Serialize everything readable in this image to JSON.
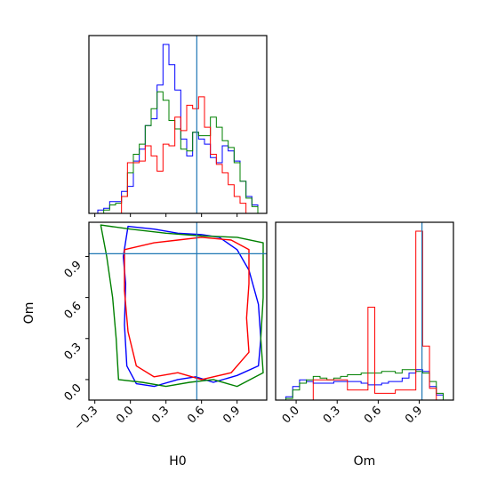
{
  "chart_data": [
    {
      "panel": "H0-marginal",
      "type": "histogram",
      "xlim": [
        -0.35,
        1.15
      ],
      "truth": 0.56,
      "series": [
        {
          "color": "#0000ff",
          "x": [
            -0.3,
            -0.25,
            -0.2,
            -0.15,
            -0.1,
            -0.05,
            0.0,
            0.05,
            0.1,
            0.15,
            0.2,
            0.25,
            0.3,
            0.35,
            0.4,
            0.45,
            0.5,
            0.55,
            0.6,
            0.65,
            0.7,
            0.75,
            0.8,
            0.85,
            0.9,
            0.95,
            1.0,
            1.05,
            1.1
          ],
          "values": [
            0.0,
            0.02,
            0.03,
            0.07,
            0.07,
            0.13,
            0.16,
            0.31,
            0.38,
            0.52,
            0.56,
            0.76,
            1.0,
            0.88,
            0.73,
            0.44,
            0.34,
            0.48,
            0.44,
            0.41,
            0.33,
            0.3,
            0.4,
            0.37,
            0.31,
            0.19,
            0.1,
            0.05,
            0.0
          ]
        },
        {
          "color": "#008000",
          "x": [
            -0.3,
            -0.25,
            -0.2,
            -0.15,
            -0.1,
            -0.05,
            0.0,
            0.05,
            0.1,
            0.15,
            0.2,
            0.25,
            0.3,
            0.35,
            0.4,
            0.45,
            0.5,
            0.55,
            0.6,
            0.65,
            0.7,
            0.75,
            0.8,
            0.85,
            0.9,
            0.95,
            1.0,
            1.05,
            1.1
          ],
          "values": [
            0.0,
            0.0,
            0.02,
            0.05,
            0.06,
            0.1,
            0.24,
            0.35,
            0.41,
            0.52,
            0.62,
            0.72,
            0.67,
            0.55,
            0.5,
            0.38,
            0.37,
            0.48,
            0.46,
            0.46,
            0.57,
            0.51,
            0.43,
            0.39,
            0.3,
            0.19,
            0.09,
            0.04,
            0.0
          ]
        },
        {
          "color": "#ff0000",
          "x": [
            -0.3,
            -0.25,
            -0.2,
            -0.15,
            -0.1,
            -0.05,
            0.0,
            0.05,
            0.1,
            0.15,
            0.2,
            0.25,
            0.3,
            0.35,
            0.4,
            0.45,
            0.5,
            0.55,
            0.6,
            0.65,
            0.7,
            0.75,
            0.8,
            0.85,
            0.9,
            0.95,
            1.0,
            1.05,
            1.1
          ],
          "values": [
            0.0,
            0.0,
            0.0,
            0.0,
            0.0,
            0.1,
            0.3,
            0.3,
            0.31,
            0.4,
            0.34,
            0.25,
            0.41,
            0.4,
            0.57,
            0.49,
            0.64,
            0.62,
            0.69,
            0.51,
            0.35,
            0.29,
            0.24,
            0.17,
            0.1,
            0.06,
            0.0,
            0.0,
            0.0
          ]
        }
      ]
    },
    {
      "panel": "H0-Om-joint",
      "type": "contour",
      "xlim": [
        -0.35,
        1.15
      ],
      "ylim": [
        -0.15,
        1.15
      ],
      "truth": {
        "x": 0.56,
        "y": 0.92
      },
      "series": [
        {
          "color": "#0000ff",
          "points": [
            [
              -0.02,
              1.12
            ],
            [
              0.2,
              1.1
            ],
            [
              0.4,
              1.07
            ],
            [
              0.6,
              1.06
            ],
            [
              0.75,
              1.04
            ],
            [
              0.9,
              0.95
            ],
            [
              1.0,
              0.8
            ],
            [
              1.08,
              0.55
            ],
            [
              1.1,
              0.3
            ],
            [
              1.08,
              0.1
            ],
            [
              0.9,
              0.03
            ],
            [
              0.7,
              -0.02
            ],
            [
              0.55,
              0.02
            ],
            [
              0.4,
              0.0
            ],
            [
              0.2,
              -0.05
            ],
            [
              0.05,
              -0.03
            ],
            [
              -0.03,
              0.1
            ],
            [
              -0.05,
              0.4
            ],
            [
              -0.04,
              0.7
            ],
            [
              -0.06,
              0.9
            ],
            [
              -0.02,
              1.12
            ]
          ]
        },
        {
          "color": "#008000",
          "points": [
            [
              -0.25,
              1.13
            ],
            [
              0.0,
              1.1
            ],
            [
              0.3,
              1.07
            ],
            [
              0.6,
              1.05
            ],
            [
              0.9,
              1.04
            ],
            [
              1.12,
              1.0
            ],
            [
              1.12,
              0.6
            ],
            [
              1.1,
              0.3
            ],
            [
              1.12,
              0.05
            ],
            [
              0.9,
              -0.05
            ],
            [
              0.7,
              0.0
            ],
            [
              0.5,
              -0.02
            ],
            [
              0.3,
              -0.05
            ],
            [
              0.1,
              -0.02
            ],
            [
              -0.1,
              0.0
            ],
            [
              -0.12,
              0.3
            ],
            [
              -0.15,
              0.6
            ],
            [
              -0.2,
              0.9
            ],
            [
              -0.25,
              1.13
            ]
          ]
        },
        {
          "color": "#ff0000",
          "points": [
            [
              -0.05,
              0.95
            ],
            [
              0.2,
              1.0
            ],
            [
              0.4,
              1.02
            ],
            [
              0.6,
              1.04
            ],
            [
              0.85,
              1.02
            ],
            [
              1.0,
              0.95
            ],
            [
              1.0,
              0.7
            ],
            [
              0.98,
              0.45
            ],
            [
              1.0,
              0.2
            ],
            [
              0.85,
              0.05
            ],
            [
              0.6,
              0.0
            ],
            [
              0.4,
              0.05
            ],
            [
              0.2,
              0.02
            ],
            [
              0.05,
              0.1
            ],
            [
              -0.02,
              0.35
            ],
            [
              -0.05,
              0.65
            ],
            [
              -0.05,
              0.95
            ]
          ]
        }
      ]
    },
    {
      "panel": "Om-marginal",
      "type": "histogram",
      "xlim": [
        -0.15,
        1.15
      ],
      "truth": 0.92,
      "series": [
        {
          "color": "#0000ff",
          "x": [
            -0.1,
            -0.05,
            0.0,
            0.05,
            0.1,
            0.15,
            0.2,
            0.25,
            0.3,
            0.35,
            0.4,
            0.45,
            0.5,
            0.55,
            0.6,
            0.65,
            0.7,
            0.75,
            0.8,
            0.85,
            0.9,
            0.95,
            1.0,
            1.05,
            1.1
          ],
          "values": [
            0.0,
            0.02,
            0.08,
            0.12,
            0.11,
            0.1,
            0.1,
            0.1,
            0.11,
            0.11,
            0.11,
            0.11,
            0.1,
            0.09,
            0.09,
            0.1,
            0.11,
            0.11,
            0.13,
            0.16,
            0.18,
            0.17,
            0.08,
            0.03,
            0.0
          ]
        },
        {
          "color": "#008000",
          "x": [
            -0.1,
            -0.05,
            0.0,
            0.05,
            0.1,
            0.15,
            0.2,
            0.25,
            0.3,
            0.35,
            0.4,
            0.45,
            0.5,
            0.55,
            0.6,
            0.65,
            0.7,
            0.75,
            0.8,
            0.85,
            0.9,
            0.95,
            1.0,
            1.05,
            1.1
          ],
          "values": [
            0.0,
            0.01,
            0.06,
            0.1,
            0.12,
            0.14,
            0.13,
            0.12,
            0.13,
            0.14,
            0.15,
            0.15,
            0.16,
            0.16,
            0.16,
            0.17,
            0.17,
            0.16,
            0.18,
            0.18,
            0.17,
            0.16,
            0.11,
            0.04,
            0.0
          ]
        },
        {
          "color": "#ff0000",
          "x": [
            -0.1,
            -0.05,
            0.0,
            0.05,
            0.1,
            0.15,
            0.2,
            0.25,
            0.3,
            0.35,
            0.4,
            0.45,
            0.5,
            0.55,
            0.6,
            0.65,
            0.7,
            0.75,
            0.8,
            0.85,
            0.9,
            0.95,
            1.0,
            1.05,
            1.1
          ],
          "values": [
            0.0,
            0.0,
            0.0,
            0.0,
            0.0,
            0.12,
            0.12,
            0.12,
            0.12,
            0.12,
            0.06,
            0.06,
            0.06,
            0.55,
            0.04,
            0.04,
            0.04,
            0.06,
            0.06,
            0.06,
            1.0,
            0.32,
            0.07,
            0.0,
            0.0
          ]
        }
      ]
    }
  ],
  "axes": {
    "h0_ticks": [
      "−0.3",
      "0.0",
      "0.3",
      "0.6",
      "0.9"
    ],
    "om_ticks": [
      "0.0",
      "0.3",
      "0.6",
      "0.9"
    ],
    "xlabel_left": "H0",
    "xlabel_right": "Om",
    "ylabel": "Om"
  },
  "colors": {
    "truth": "#1f77b4",
    "series": [
      "#0000ff",
      "#008000",
      "#ff0000"
    ]
  }
}
